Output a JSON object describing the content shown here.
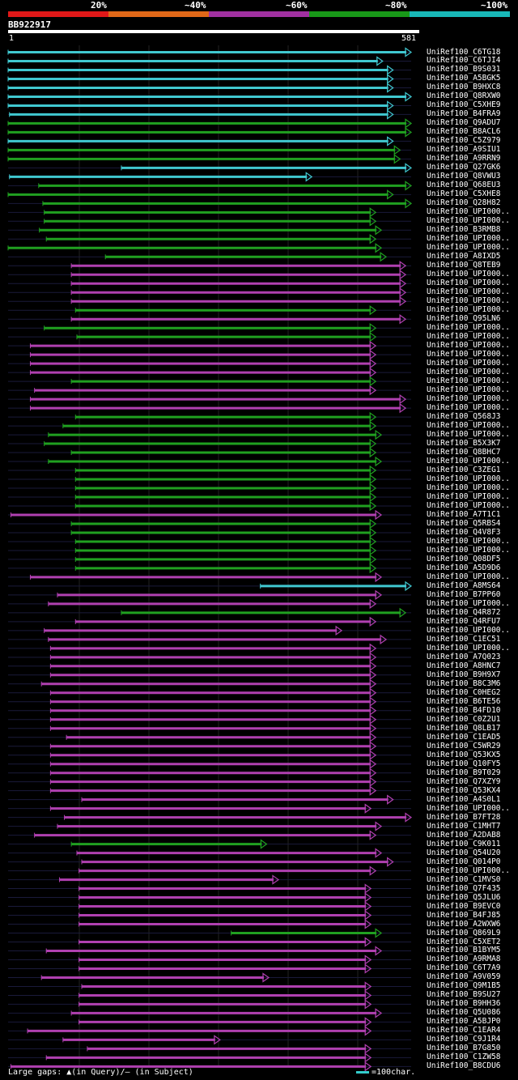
{
  "legend": {
    "colors": [
      "#e01818",
      "#e06818",
      "#a030a0",
      "#189818",
      "#18b8b8"
    ],
    "labels": [
      "20%",
      "~40%",
      "~60%",
      "~80%",
      "~100%"
    ]
  },
  "query": {
    "id": "BB922917",
    "start": "1",
    "end": "581",
    "length": 581
  },
  "footer": {
    "text": "Large gaps: ▲(in Query)/– (in Subject)",
    "scale": "=100char."
  },
  "hits": [
    {
      "name": "UniRef100_C6TG18",
      "s": 1,
      "e": 581,
      "c": "c"
    },
    {
      "name": "UniRef100_C6TJI4",
      "s": 1,
      "e": 540,
      "c": "c"
    },
    {
      "name": "UniRef100_B9S031",
      "s": 1,
      "e": 555,
      "c": "c"
    },
    {
      "name": "UniRef100_A5BGK5",
      "s": 1,
      "e": 555,
      "c": "c"
    },
    {
      "name": "UniRef100_B9HXC8",
      "s": 1,
      "e": 555,
      "c": "c"
    },
    {
      "name": "UniRef100_Q8RXW0",
      "s": 1,
      "e": 581,
      "c": "c"
    },
    {
      "name": "UniRef100_C5XHE9",
      "s": 1,
      "e": 555,
      "c": "c"
    },
    {
      "name": "UniRef100_B4FRA9",
      "s": 3,
      "e": 555,
      "c": "c"
    },
    {
      "name": "UniRef100_Q9ADU7",
      "s": 1,
      "e": 581,
      "c": "g"
    },
    {
      "name": "UniRef100_B8ACL6",
      "s": 1,
      "e": 581,
      "c": "g"
    },
    {
      "name": "UniRef100_C5Z979",
      "s": 1,
      "e": 555,
      "c": "c"
    },
    {
      "name": "UniRef100_A9SIU1",
      "s": 1,
      "e": 565,
      "c": "g"
    },
    {
      "name": "UniRef100_A9RRN9",
      "s": 1,
      "e": 565,
      "c": "g"
    },
    {
      "name": "UniRef100_Q27GK6",
      "s": 164,
      "e": 581,
      "c": "c"
    },
    {
      "name": "UniRef100_Q8VWU3",
      "s": 3,
      "e": 438,
      "c": "c"
    },
    {
      "name": "UniRef100_Q68EU3",
      "s": 45,
      "e": 581,
      "c": "g"
    },
    {
      "name": "UniRef100_C5XHE8",
      "s": 1,
      "e": 555,
      "c": "g"
    },
    {
      "name": "UniRef100_Q28H82",
      "s": 51,
      "e": 581,
      "c": "g"
    },
    {
      "name": "UniRef100_UPI000..",
      "s": 53,
      "e": 530,
      "c": "g"
    },
    {
      "name": "UniRef100_UPI000..",
      "s": 53,
      "e": 530,
      "c": "g"
    },
    {
      "name": "UniRef100_B3RMB8",
      "s": 46,
      "e": 538,
      "c": "g"
    },
    {
      "name": "UniRef100_UPI000..",
      "s": 56,
      "e": 530,
      "c": "g"
    },
    {
      "name": "UniRef100_UPI000..",
      "s": 1,
      "e": 538,
      "c": "g"
    },
    {
      "name": "UniRef100_A8IXD5",
      "s": 141,
      "e": 545,
      "c": "g"
    },
    {
      "name": "UniRef100_Q8TEB9",
      "s": 92,
      "e": 573,
      "c": "p"
    },
    {
      "name": "UniRef100_UPI000..",
      "s": 92,
      "e": 573,
      "c": "p"
    },
    {
      "name": "UniRef100_UPI000..",
      "s": 92,
      "e": 573,
      "c": "p"
    },
    {
      "name": "UniRef100_UPI000..",
      "s": 92,
      "e": 573,
      "c": "p"
    },
    {
      "name": "UniRef100_UPI000..",
      "s": 92,
      "e": 573,
      "c": "p"
    },
    {
      "name": "UniRef100_UPI000..",
      "s": 98,
      "e": 530,
      "c": "g"
    },
    {
      "name": "UniRef100_Q95LN6",
      "s": 92,
      "e": 573,
      "c": "p"
    },
    {
      "name": "UniRef100_UPI000..",
      "s": 53,
      "e": 530,
      "c": "g"
    },
    {
      "name": "UniRef100_UPI000..",
      "s": 100,
      "e": 530,
      "c": "g"
    },
    {
      "name": "UniRef100_UPI000..",
      "s": 33,
      "e": 530,
      "c": "p"
    },
    {
      "name": "UniRef100_UPI000..",
      "s": 33,
      "e": 530,
      "c": "p"
    },
    {
      "name": "UniRef100_UPI000..",
      "s": 33,
      "e": 530,
      "c": "p"
    },
    {
      "name": "UniRef100_UPI000..",
      "s": 33,
      "e": 530,
      "c": "p"
    },
    {
      "name": "UniRef100_UPI000..",
      "s": 92,
      "e": 530,
      "c": "g"
    },
    {
      "name": "UniRef100_UPI000..",
      "s": 39,
      "e": 530,
      "c": "p"
    },
    {
      "name": "UniRef100_UPI000..",
      "s": 33,
      "e": 573,
      "c": "p"
    },
    {
      "name": "UniRef100_UPI000..",
      "s": 33,
      "e": 573,
      "c": "p"
    },
    {
      "name": "UniRef100_Q568J3",
      "s": 98,
      "e": 530,
      "c": "g"
    },
    {
      "name": "UniRef100_UPI000..",
      "s": 80,
      "e": 530,
      "c": "g"
    },
    {
      "name": "UniRef100_UPI000..",
      "s": 59,
      "e": 538,
      "c": "g"
    },
    {
      "name": "UniRef100_B5X3K7",
      "s": 53,
      "e": 530,
      "c": "g"
    },
    {
      "name": "UniRef100_Q8BHC7",
      "s": 92,
      "e": 530,
      "c": "g"
    },
    {
      "name": "UniRef100_UPI000..",
      "s": 59,
      "e": 538,
      "c": "g"
    },
    {
      "name": "UniRef100_C3ZEG1",
      "s": 98,
      "e": 530,
      "c": "g"
    },
    {
      "name": "UniRef100_UPI000..",
      "s": 98,
      "e": 530,
      "c": "g"
    },
    {
      "name": "UniRef100_UPI000..",
      "s": 98,
      "e": 530,
      "c": "g"
    },
    {
      "name": "UniRef100_UPI000..",
      "s": 98,
      "e": 530,
      "c": "g"
    },
    {
      "name": "UniRef100_UPI000..",
      "s": 98,
      "e": 530,
      "c": "g"
    },
    {
      "name": "UniRef100_A7T1C1",
      "s": 5,
      "e": 538,
      "c": "p"
    },
    {
      "name": "UniRef100_Q5RBS4",
      "s": 92,
      "e": 530,
      "c": "g"
    },
    {
      "name": "UniRef100_Q4V8F3",
      "s": 92,
      "e": 530,
      "c": "g"
    },
    {
      "name": "UniRef100_UPI000..",
      "s": 98,
      "e": 530,
      "c": "g"
    },
    {
      "name": "UniRef100_UPI000..",
      "s": 98,
      "e": 530,
      "c": "g"
    },
    {
      "name": "UniRef100_Q08DF5",
      "s": 98,
      "e": 530,
      "c": "g"
    },
    {
      "name": "UniRef100_A5D9D6",
      "s": 98,
      "e": 530,
      "c": "g"
    },
    {
      "name": "UniRef100_UPI000..",
      "s": 33,
      "e": 538,
      "c": "p"
    },
    {
      "name": "UniRef100_A8MS64",
      "s": 364,
      "e": 581,
      "c": "c"
    },
    {
      "name": "UniRef100_B7PP60",
      "s": 72,
      "e": 538,
      "c": "p"
    },
    {
      "name": "UniRef100_UPI000..",
      "s": 59,
      "e": 530,
      "c": "p"
    },
    {
      "name": "UniRef100_Q4R872",
      "s": 164,
      "e": 573,
      "c": "g"
    },
    {
      "name": "UniRef100_Q4RFU7",
      "s": 98,
      "e": 530,
      "c": "p"
    },
    {
      "name": "UniRef100_UPI000..",
      "s": 53,
      "e": 481,
      "c": "p"
    },
    {
      "name": "UniRef100_C1EC51",
      "s": 59,
      "e": 545,
      "c": "p"
    },
    {
      "name": "UniRef100_UPI000..",
      "s": 62,
      "e": 530,
      "c": "p"
    },
    {
      "name": "UniRef100_A7Q023",
      "s": 62,
      "e": 530,
      "c": "p"
    },
    {
      "name": "UniRef100_A8HNC7",
      "s": 62,
      "e": 530,
      "c": "p"
    },
    {
      "name": "UniRef100_B9H9X7",
      "s": 62,
      "e": 530,
      "c": "p"
    },
    {
      "name": "UniRef100_B8C3M6",
      "s": 49,
      "e": 530,
      "c": "p"
    },
    {
      "name": "UniRef100_C0HEG2",
      "s": 62,
      "e": 530,
      "c": "p"
    },
    {
      "name": "UniRef100_B6TE56",
      "s": 62,
      "e": 530,
      "c": "p"
    },
    {
      "name": "UniRef100_B4FD10",
      "s": 62,
      "e": 530,
      "c": "p"
    },
    {
      "name": "UniRef100_C0Z2U1",
      "s": 62,
      "e": 530,
      "c": "p"
    },
    {
      "name": "UniRef100_Q8LB17",
      "s": 62,
      "e": 530,
      "c": "p"
    },
    {
      "name": "UniRef100_C1EAD5",
      "s": 85,
      "e": 530,
      "c": "p"
    },
    {
      "name": "UniRef100_C5WR29",
      "s": 62,
      "e": 530,
      "c": "p"
    },
    {
      "name": "UniRef100_Q53KX5",
      "s": 62,
      "e": 530,
      "c": "p"
    },
    {
      "name": "UniRef100_Q10FY5",
      "s": 62,
      "e": 530,
      "c": "p"
    },
    {
      "name": "UniRef100_B9T029",
      "s": 62,
      "e": 530,
      "c": "p"
    },
    {
      "name": "UniRef100_Q7XZY9",
      "s": 62,
      "e": 530,
      "c": "p"
    },
    {
      "name": "UniRef100_Q53KX4",
      "s": 62,
      "e": 530,
      "c": "p"
    },
    {
      "name": "UniRef100_A4S0L1",
      "s": 107,
      "e": 555,
      "c": "p"
    },
    {
      "name": "UniRef100_UPI000..",
      "s": 62,
      "e": 523,
      "c": "p"
    },
    {
      "name": "UniRef100_B7FT28",
      "s": 82,
      "e": 581,
      "c": "p"
    },
    {
      "name": "UniRef100_C1MHT7",
      "s": 72,
      "e": 538,
      "c": "p"
    },
    {
      "name": "UniRef100_A2DAB8",
      "s": 39,
      "e": 530,
      "c": "p"
    },
    {
      "name": "UniRef100_C9K011",
      "s": 92,
      "e": 373,
      "c": "g"
    },
    {
      "name": "UniRef100_Q54U20",
      "s": 100,
      "e": 538,
      "c": "p"
    },
    {
      "name": "UniRef100_Q014P0",
      "s": 107,
      "e": 555,
      "c": "p"
    },
    {
      "name": "UniRef100_UPI000..",
      "s": 103,
      "e": 530,
      "c": "p"
    },
    {
      "name": "UniRef100_C1MVS0",
      "s": 75,
      "e": 390,
      "c": "p"
    },
    {
      "name": "UniRef100_Q7F435",
      "s": 103,
      "e": 523,
      "c": "p"
    },
    {
      "name": "UniRef100_Q5JLU6",
      "s": 103,
      "e": 523,
      "c": "p"
    },
    {
      "name": "UniRef100_B9EVC0",
      "s": 103,
      "e": 523,
      "c": "p"
    },
    {
      "name": "UniRef100_B4FJ85",
      "s": 103,
      "e": 523,
      "c": "p"
    },
    {
      "name": "UniRef100_A2WXW6",
      "s": 103,
      "e": 523,
      "c": "p"
    },
    {
      "name": "UniRef100_Q869L9",
      "s": 322,
      "e": 538,
      "c": "g"
    },
    {
      "name": "UniRef100_C5XET2",
      "s": 103,
      "e": 523,
      "c": "p"
    },
    {
      "name": "UniRef100_B1BYM5",
      "s": 56,
      "e": 538,
      "c": "p"
    },
    {
      "name": "UniRef100_A9RMA8",
      "s": 103,
      "e": 523,
      "c": "p"
    },
    {
      "name": "UniRef100_C6T7A9",
      "s": 103,
      "e": 523,
      "c": "p"
    },
    {
      "name": "UniRef100_A9V059",
      "s": 49,
      "e": 376,
      "c": "p"
    },
    {
      "name": "UniRef100_Q9M1B5",
      "s": 107,
      "e": 523,
      "c": "p"
    },
    {
      "name": "UniRef100_B9SU27",
      "s": 103,
      "e": 523,
      "c": "p"
    },
    {
      "name": "UniRef100_B9HH36",
      "s": 103,
      "e": 523,
      "c": "p"
    },
    {
      "name": "UniRef100_Q5U086",
      "s": 92,
      "e": 538,
      "c": "p"
    },
    {
      "name": "UniRef100_A5BJP0",
      "s": 103,
      "e": 523,
      "c": "p"
    },
    {
      "name": "UniRef100_C1EAR4",
      "s": 29,
      "e": 523,
      "c": "p"
    },
    {
      "name": "UniRef100_C9J1R4",
      "s": 80,
      "e": 306,
      "c": "p"
    },
    {
      "name": "UniRef100_B7G850",
      "s": 115,
      "e": 523,
      "c": "p"
    },
    {
      "name": "UniRef100_C1ZW58",
      "s": 56,
      "e": 523,
      "c": "p"
    },
    {
      "name": "UniRef100_B8CDU6",
      "s": 5,
      "e": 523,
      "c": "p"
    }
  ]
}
